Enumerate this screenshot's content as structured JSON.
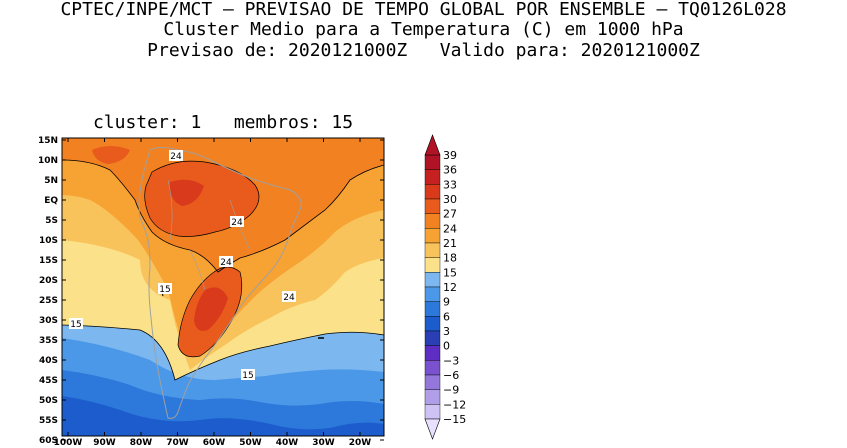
{
  "header": {
    "line1": "CPTEC/INPE/MCT – PREVISAO DE TEMPO GLOBAL POR ENSEMBLE – TQ0126L028",
    "line2": "Cluster Medio para a Temperatura (C) em 1000 hPa",
    "line3": "Previsao de: 2020121000Z   Valido para: 2020121000Z"
  },
  "panel": {
    "title": "cluster: 1   membros: 15"
  },
  "map": {
    "lat_labels": [
      "15N",
      "10N",
      "5N",
      "EQ",
      "5S",
      "10S",
      "15S",
      "20S",
      "25S",
      "30S",
      "35S",
      "40S",
      "45S",
      "50S",
      "55S",
      "60S"
    ],
    "lon_labels": [
      "100W",
      "90W",
      "80W",
      "70W",
      "60W",
      "50W",
      "40W",
      "30W",
      "20W"
    ],
    "contour_labels": [
      {
        "text": "24",
        "where": "north"
      },
      {
        "text": "24",
        "where": "amazon"
      },
      {
        "text": "24",
        "where": "central"
      },
      {
        "text": "24",
        "where": "atlantic"
      },
      {
        "text": "15",
        "where": "andes"
      },
      {
        "text": "15",
        "where": "pacific"
      },
      {
        "text": "15",
        "where": "south-atlantic"
      }
    ]
  },
  "colorbar": {
    "levels": [
      "39",
      "36",
      "33",
      "30",
      "27",
      "24",
      "21",
      "18",
      "15",
      "12",
      "9",
      "6",
      "3",
      "0",
      "−3",
      "−6",
      "−9",
      "−12",
      "−15"
    ],
    "colors": [
      "#e8e0ff",
      "#cfc2f5",
      "#b19ee8",
      "#9477da",
      "#7a52cf",
      "#5d2dc4",
      "#2a3fb5",
      "#1c5ccc",
      "#2c78db",
      "#4c98e8",
      "#7cb8ef",
      "#fbe28a",
      "#f9c35c",
      "#f7a334",
      "#f28121",
      "#e95b1c",
      "#d93a1c",
      "#c42120",
      "#b01325"
    ]
  }
}
